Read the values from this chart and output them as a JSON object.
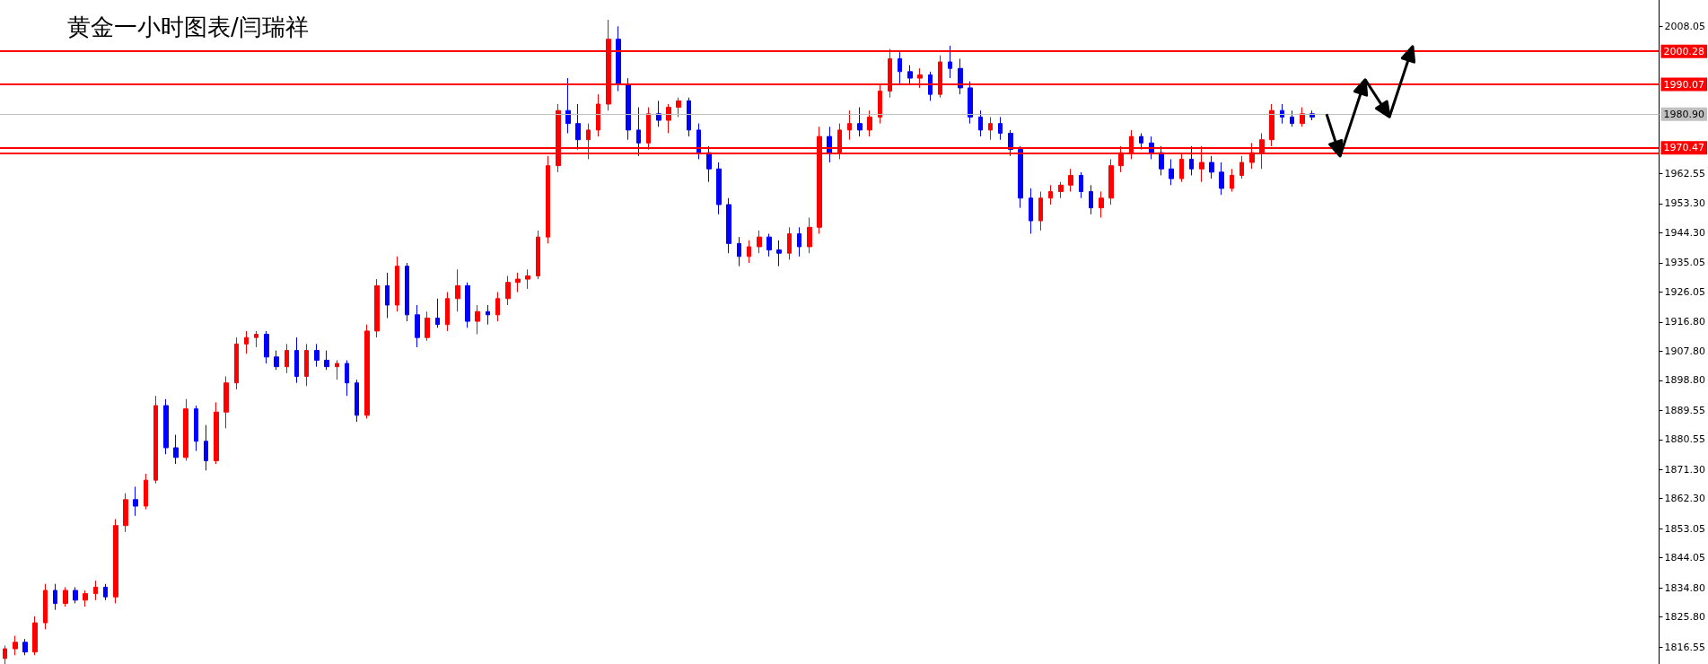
{
  "chart_data": {
    "type": "candlestick",
    "title": "黄金一小时图表/闫瑞祥",
    "categories": [
      null,
      null,
      null,
      null,
      null,
      null,
      null,
      null,
      null,
      null,
      null,
      null,
      null,
      null,
      null,
      null,
      null,
      null,
      null,
      null,
      null,
      null,
      null,
      null,
      null,
      null,
      null,
      null,
      null,
      null,
      null,
      null,
      null,
      null,
      null,
      null,
      null,
      null,
      null,
      null,
      null,
      null,
      null,
      null,
      null,
      null,
      null,
      null,
      null,
      null,
      null,
      null,
      null,
      null,
      null,
      null,
      null,
      null,
      null,
      null,
      null,
      null,
      null,
      null,
      null,
      null,
      null,
      null,
      null,
      null,
      null,
      null,
      null,
      null,
      null,
      null,
      null,
      null,
      null,
      null,
      null,
      null,
      null,
      null,
      null,
      null,
      null,
      null,
      null,
      null,
      null,
      null,
      null,
      null,
      null,
      null,
      null,
      null,
      null,
      null,
      null,
      null,
      null,
      null,
      null,
      null,
      null,
      null,
      null,
      null,
      null,
      null,
      null,
      null,
      null,
      null,
      null,
      null,
      null,
      null,
      null,
      null,
      null,
      null,
      null,
      null,
      null,
      null,
      null,
      null,
      null,
      null,
      null,
      null,
      null,
      null,
      null,
      null,
      null,
      null,
      null,
      null,
      null,
      null,
      null,
      null,
      null,
      null,
      null,
      null,
      null,
      null,
      null,
      null,
      null,
      null,
      null,
      null,
      null,
      null,
      null,
      null,
      null,
      null,
      null
    ],
    "ohlc": [
      [
        1813,
        1817,
        1811,
        1816
      ],
      [
        1816,
        1820,
        1814,
        1818
      ],
      [
        1818,
        1819,
        1814,
        1815
      ],
      [
        1815,
        1826,
        1814,
        1824
      ],
      [
        1824,
        1836,
        1822,
        1834
      ],
      [
        1834,
        1836,
        1828,
        1830
      ],
      [
        1830,
        1835,
        1829,
        1834
      ],
      [
        1834,
        1835,
        1830,
        1831
      ],
      [
        1831,
        1834,
        1829,
        1833
      ],
      [
        1833,
        1837,
        1831,
        1835
      ],
      [
        1835,
        1836,
        1831,
        1832
      ],
      [
        1832,
        1856,
        1830,
        1854
      ],
      [
        1854,
        1864,
        1852,
        1862
      ],
      [
        1862,
        1866,
        1857,
        1860
      ],
      [
        1860,
        1870,
        1859,
        1868
      ],
      [
        1868,
        1894,
        1867,
        1891
      ],
      [
        1891,
        1893,
        1876,
        1878
      ],
      [
        1878,
        1882,
        1873,
        1875
      ],
      [
        1875,
        1893,
        1874,
        1890
      ],
      [
        1890,
        1891,
        1877,
        1880
      ],
      [
        1880,
        1885,
        1871,
        1874
      ],
      [
        1874,
        1892,
        1873,
        1889
      ],
      [
        1889,
        1900,
        1884,
        1898
      ],
      [
        1898,
        1912,
        1896,
        1910
      ],
      [
        1910,
        1914,
        1907,
        1912
      ],
      [
        1912,
        1914,
        1909,
        1913
      ],
      [
        1913,
        1914,
        1904,
        1906
      ],
      [
        1906,
        1908,
        1902,
        1903
      ],
      [
        1903,
        1910,
        1901,
        1908
      ],
      [
        1908,
        1912,
        1898,
        1900
      ],
      [
        1900,
        1910,
        1897,
        1908
      ],
      [
        1908,
        1910,
        1903,
        1905
      ],
      [
        1905,
        1908,
        1902,
        1903
      ],
      [
        1903,
        1905,
        1899,
        1904
      ],
      [
        1904,
        1905,
        1894,
        1898
      ],
      [
        1898,
        1899,
        1886,
        1888
      ],
      [
        1888,
        1916,
        1887,
        1914
      ],
      [
        1914,
        1930,
        1912,
        1928
      ],
      [
        1928,
        1932,
        1918,
        1922
      ],
      [
        1922,
        1937,
        1920,
        1934
      ],
      [
        1934,
        1935,
        1917,
        1919
      ],
      [
        1919,
        1922,
        1909,
        1912
      ],
      [
        1912,
        1920,
        1911,
        1918
      ],
      [
        1918,
        1924,
        1915,
        1916
      ],
      [
        1916,
        1926,
        1914,
        1924
      ],
      [
        1924,
        1933,
        1920,
        1928
      ],
      [
        1928,
        1929,
        1915,
        1917
      ],
      [
        1917,
        1922,
        1913,
        1920
      ],
      [
        1920,
        1922,
        1916,
        1919
      ],
      [
        1919,
        1926,
        1917,
        1924
      ],
      [
        1924,
        1931,
        1922,
        1929
      ],
      [
        1929,
        1932,
        1926,
        1930
      ],
      [
        1930,
        1933,
        1927,
        1931
      ],
      [
        1931,
        1945,
        1930,
        1943
      ],
      [
        1943,
        1968,
        1941,
        1965
      ],
      [
        1965,
        1984,
        1963,
        1982
      ],
      [
        1982,
        1992,
        1975,
        1978
      ],
      [
        1978,
        1984,
        1970,
        1973
      ],
      [
        1973,
        1978,
        1967,
        1976
      ],
      [
        1976,
        1987,
        1974,
        1984
      ],
      [
        1984,
        2010,
        1982,
        2004
      ],
      [
        2004,
        2008,
        1988,
        1990
      ],
      [
        1990,
        1992,
        1973,
        1976
      ],
      [
        1976,
        1983,
        1968,
        1972
      ],
      [
        1972,
        1983,
        1970,
        1981
      ],
      [
        1981,
        1985,
        1977,
        1979
      ],
      [
        1979,
        1984,
        1975,
        1983
      ],
      [
        1983,
        1986,
        1980,
        1985
      ],
      [
        1985,
        1986,
        1974,
        1976
      ],
      [
        1976,
        1978,
        1967,
        1969
      ],
      [
        1969,
        1971,
        1960,
        1964
      ],
      [
        1964,
        1966,
        1950,
        1953
      ],
      [
        1953,
        1955,
        1938,
        1941
      ],
      [
        1941,
        1943,
        1934,
        1937
      ],
      [
        1937,
        1942,
        1935,
        1940
      ],
      [
        1940,
        1945,
        1938,
        1943
      ],
      [
        1943,
        1944,
        1937,
        1939
      ],
      [
        1939,
        1942,
        1934,
        1938
      ],
      [
        1938,
        1946,
        1936,
        1944
      ],
      [
        1944,
        1946,
        1937,
        1940
      ],
      [
        1940,
        1949,
        1938,
        1946
      ],
      [
        1946,
        1977,
        1944,
        1974
      ],
      [
        1974,
        1977,
        1966,
        1969
      ],
      [
        1969,
        1978,
        1967,
        1976
      ],
      [
        1976,
        1982,
        1973,
        1978
      ],
      [
        1978,
        1983,
        1974,
        1976
      ],
      [
        1976,
        1982,
        1974,
        1980
      ],
      [
        1980,
        1990,
        1978,
        1988
      ],
      [
        1988,
        2001,
        1986,
        1998
      ],
      [
        1998,
        2000,
        1990,
        1994
      ],
      [
        1994,
        1996,
        1990,
        1992
      ],
      [
        1992,
        1995,
        1989,
        1993
      ],
      [
        1993,
        1994,
        1985,
        1987
      ],
      [
        1987,
        1999,
        1986,
        1997
      ],
      [
        1997,
        2002,
        1992,
        1995
      ],
      [
        1995,
        1998,
        1987,
        1989
      ],
      [
        1989,
        1991,
        1978,
        1980
      ],
      [
        1980,
        1982,
        1974,
        1976
      ],
      [
        1976,
        1980,
        1973,
        1978
      ],
      [
        1978,
        1980,
        1973,
        1975
      ],
      [
        1975,
        1976,
        1968,
        1970
      ],
      [
        1970,
        1971,
        1952,
        1955
      ],
      [
        1955,
        1958,
        1944,
        1948
      ],
      [
        1948,
        1957,
        1945,
        1955
      ],
      [
        1955,
        1959,
        1953,
        1957
      ],
      [
        1957,
        1960,
        1955,
        1959
      ],
      [
        1959,
        1964,
        1957,
        1962
      ],
      [
        1962,
        1963,
        1955,
        1957
      ],
      [
        1957,
        1959,
        1950,
        1952
      ],
      [
        1952,
        1957,
        1949,
        1955
      ],
      [
        1955,
        1967,
        1953,
        1965
      ],
      [
        1965,
        1971,
        1963,
        1969
      ],
      [
        1969,
        1976,
        1967,
        1974
      ],
      [
        1974,
        1975,
        1970,
        1972
      ],
      [
        1972,
        1974,
        1967,
        1969
      ],
      [
        1969,
        1971,
        1962,
        1964
      ],
      [
        1964,
        1967,
        1959,
        1961
      ],
      [
        1961,
        1969,
        1960,
        1967
      ],
      [
        1967,
        1971,
        1962,
        1964
      ],
      [
        1964,
        1971,
        1960,
        1966
      ],
      [
        1966,
        1968,
        1961,
        1963
      ],
      [
        1963,
        1966,
        1956,
        1958
      ],
      [
        1958,
        1964,
        1957,
        1962
      ],
      [
        1962,
        1968,
        1961,
        1966
      ],
      [
        1966,
        1972,
        1964,
        1969
      ],
      [
        1969,
        1975,
        1964,
        1973
      ],
      [
        1973,
        1984,
        1971,
        1982
      ],
      [
        1982,
        1984,
        1978,
        1980
      ],
      [
        1980,
        1982,
        1977,
        1978
      ],
      [
        1978,
        1983,
        1977,
        1981
      ],
      [
        1981,
        1982,
        1979,
        1980
      ],
      null,
      null,
      null,
      null,
      null,
      null,
      null,
      null,
      null,
      null,
      null,
      null,
      null,
      null,
      null,
      null,
      null,
      null,
      null,
      null,
      null,
      null,
      null,
      null,
      null,
      null,
      null,
      null,
      null,
      null,
      null,
      null,
      null,
      null
    ],
    "colors": [
      "#ff0000",
      "#ff0000",
      "#0000ff",
      "#ff0000",
      "#ff0000",
      "#0000ff",
      "#ff0000",
      "#0000ff",
      "#ff0000",
      "#ff0000",
      "#0000ff",
      "#ff0000",
      "#ff0000",
      "#0000ff",
      "#ff0000",
      "#ff0000",
      "#0000ff",
      "#0000ff",
      "#ff0000",
      "#0000ff",
      "#0000ff",
      "#ff0000",
      "#ff0000",
      "#ff0000",
      "#ff0000",
      "#ff0000",
      "#0000ff",
      "#0000ff",
      "#ff0000",
      "#0000ff",
      "#ff0000",
      "#0000ff",
      "#0000ff",
      "#ff0000",
      "#0000ff",
      "#0000ff",
      "#ff0000",
      "#ff0000",
      "#0000ff",
      "#ff0000",
      "#0000ff",
      "#0000ff",
      "#ff0000",
      "#0000ff",
      "#ff0000",
      "#ff0000",
      "#0000ff",
      "#ff0000",
      "#0000ff",
      "#ff0000",
      "#ff0000",
      "#ff0000",
      "#ff0000",
      "#ff0000",
      "#ff0000",
      "#ff0000",
      "#0000ff",
      "#0000ff",
      "#ff0000",
      "#ff0000",
      "#ff0000",
      "#0000ff",
      "#0000ff",
      "#0000ff",
      "#ff0000",
      "#0000ff",
      "#ff0000",
      "#ff0000",
      "#0000ff",
      "#0000ff",
      "#0000ff",
      "#0000ff",
      "#0000ff",
      "#0000ff",
      "#ff0000",
      "#ff0000",
      "#0000ff",
      "#0000ff",
      "#ff0000",
      "#0000ff",
      "#ff0000",
      "#ff0000",
      "#0000ff",
      "#ff0000",
      "#ff0000",
      "#0000ff",
      "#ff0000",
      "#ff0000",
      "#ff0000",
      "#0000ff",
      "#0000ff",
      "#ff0000",
      "#0000ff",
      "#ff0000",
      "#0000ff",
      "#0000ff",
      "#0000ff",
      "#0000ff",
      "#ff0000",
      "#0000ff",
      "#0000ff",
      "#0000ff",
      "#0000ff",
      "#ff0000",
      "#ff0000",
      "#ff0000",
      "#ff0000",
      "#0000ff",
      "#0000ff",
      "#ff0000",
      "#ff0000",
      "#ff0000",
      "#ff0000",
      "#0000ff",
      "#0000ff",
      "#0000ff",
      "#0000ff",
      "#ff0000",
      "#0000ff",
      "#ff0000",
      "#0000ff",
      "#0000ff",
      "#ff0000",
      "#ff0000",
      "#ff0000",
      "#ff0000",
      "#ff0000",
      "#0000ff",
      "#0000ff",
      "#ff0000",
      "#0000ff",
      null,
      null,
      null,
      null,
      null,
      null,
      null,
      null,
      null,
      null,
      null,
      null,
      null,
      null,
      null,
      null,
      null,
      null,
      null,
      null,
      null,
      null,
      null,
      null,
      null,
      null,
      null,
      null,
      null,
      null,
      null,
      null,
      null,
      null
    ],
    "ylim": [
      1811.3,
      2016.1
    ],
    "yticks": [
      2008.05,
      1962.55,
      {
        "value": 1953.3,
        "label": "1953.30"
      },
      {
        "value": 1944.3,
        "label": "1944.30"
      },
      1935.05,
      1926.05,
      {
        "value": 1916.8,
        "label": "1916.80"
      },
      {
        "value": 1907.8,
        "label": "1907.80"
      },
      {
        "value": 1898.8,
        "label": "1898.80"
      },
      1889.55,
      1880.55,
      {
        "value": 1871.3,
        "label": "1871.30"
      },
      {
        "value": 1862.3,
        "label": "1862.30"
      },
      1853.05,
      1844.05,
      {
        "value": 1834.8,
        "label": "1834.80"
      },
      {
        "value": 1825.8,
        "label": "1825.80"
      },
      1816.55
    ],
    "ref_lines": [
      {
        "axis": "y",
        "value": 2000.28,
        "label": "2000.28",
        "color": "#ff0000"
      },
      {
        "axis": "y",
        "value": 1990.07,
        "label": "1990.07",
        "color": "#ff0000"
      },
      {
        "axis": "y",
        "value": 1980.9,
        "label": "1980.90",
        "color": "#c0c0c0"
      },
      {
        "axis": "y",
        "value": 1970.47,
        "label": "1970.47",
        "color": "#ff0000"
      },
      {
        "axis": "y",
        "value": 1968.9,
        "label": null,
        "color": "#ff0000"
      }
    ],
    "tick_labels": "y",
    "grid": false
  }
}
